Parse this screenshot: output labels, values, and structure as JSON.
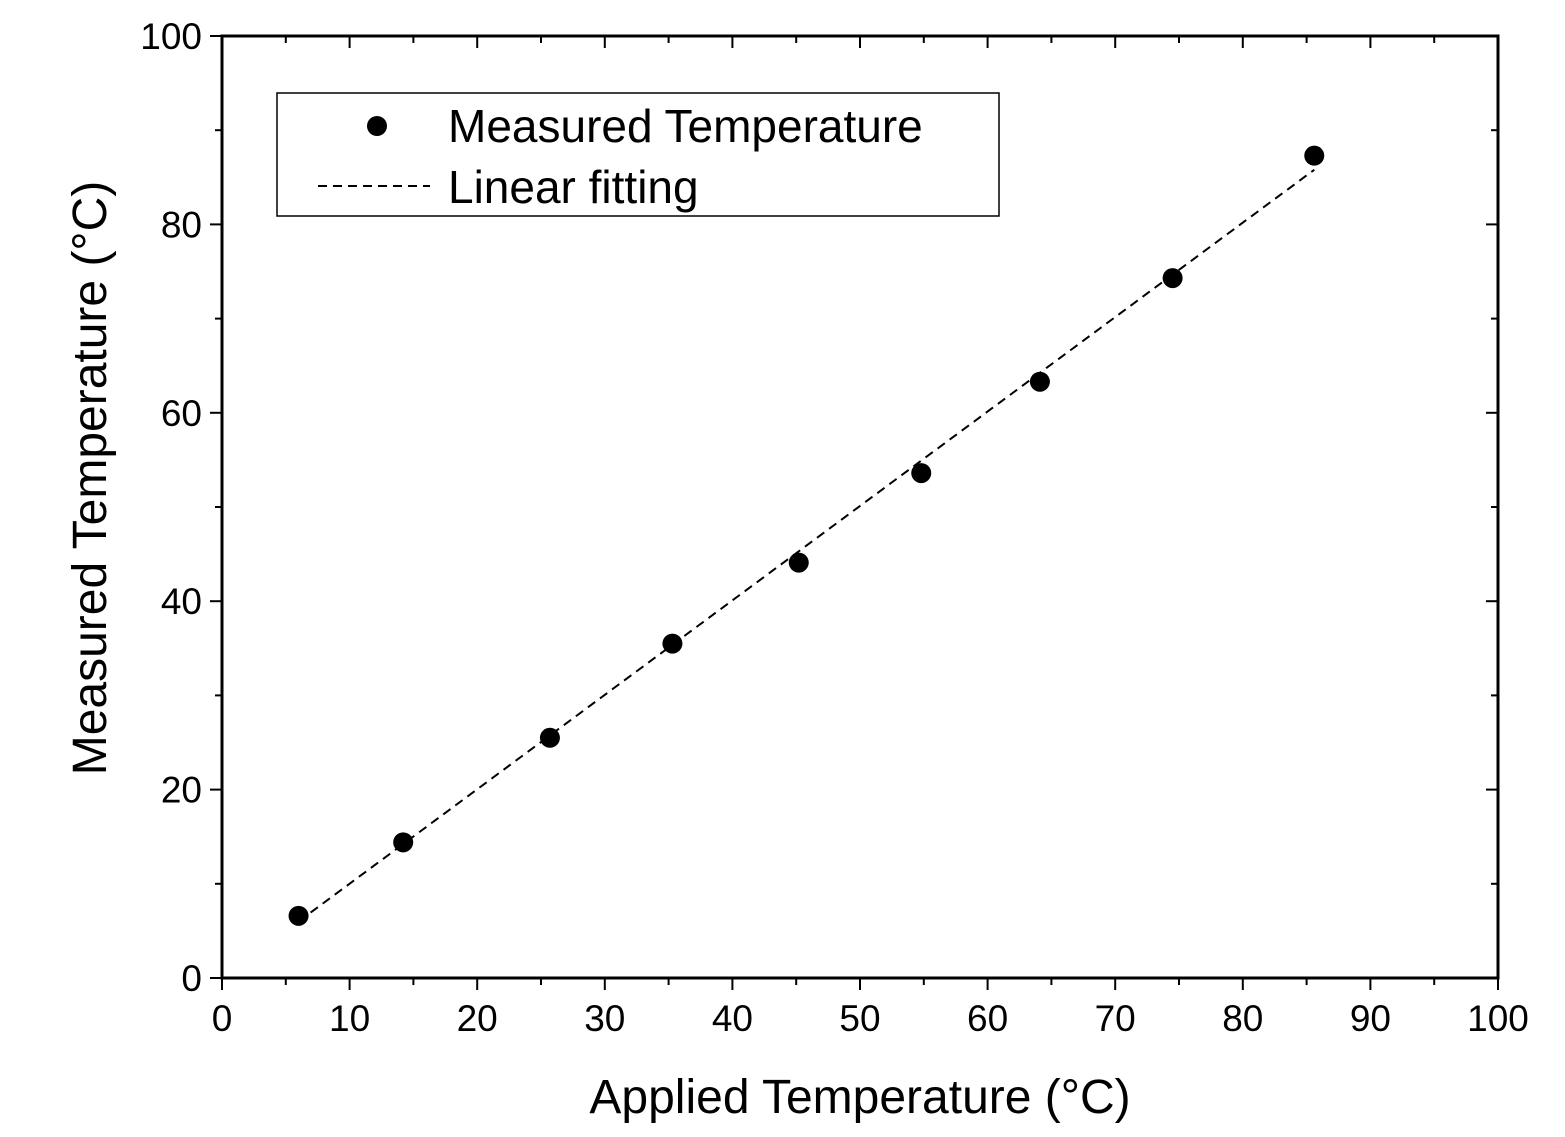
{
  "chart_data": {
    "type": "scatter",
    "title": "",
    "xlabel": "Applied Temperature (°C)",
    "ylabel": "Measured Temperature (°C)",
    "xlim": [
      0,
      100
    ],
    "ylim": [
      0,
      100
    ],
    "x_ticks": [
      0,
      10,
      20,
      30,
      40,
      50,
      60,
      70,
      80,
      90,
      100
    ],
    "y_ticks": [
      0,
      20,
      40,
      60,
      80,
      100
    ],
    "x_tick_labels": [
      "0",
      "10",
      "20",
      "30",
      "40",
      "50",
      "60",
      "70",
      "80",
      "90",
      "100"
    ],
    "y_tick_labels": [
      "0",
      "20",
      "40",
      "60",
      "80",
      "100"
    ],
    "grid": false,
    "legend_position": "top-left",
    "series": [
      {
        "name": "Measured Temperature",
        "style": "markers",
        "color": "#000000",
        "x": [
          6.0,
          14.2,
          25.7,
          35.3,
          45.2,
          54.8,
          64.1,
          74.5,
          85.6
        ],
        "y": [
          6.6,
          14.4,
          25.5,
          35.5,
          44.1,
          53.6,
          63.3,
          74.3,
          87.3
        ]
      },
      {
        "name": "Linear fitting",
        "style": "dashed-line",
        "color": "#000000",
        "x": [
          6.0,
          85.6
        ],
        "y": [
          6.0,
          85.8
        ]
      }
    ]
  }
}
